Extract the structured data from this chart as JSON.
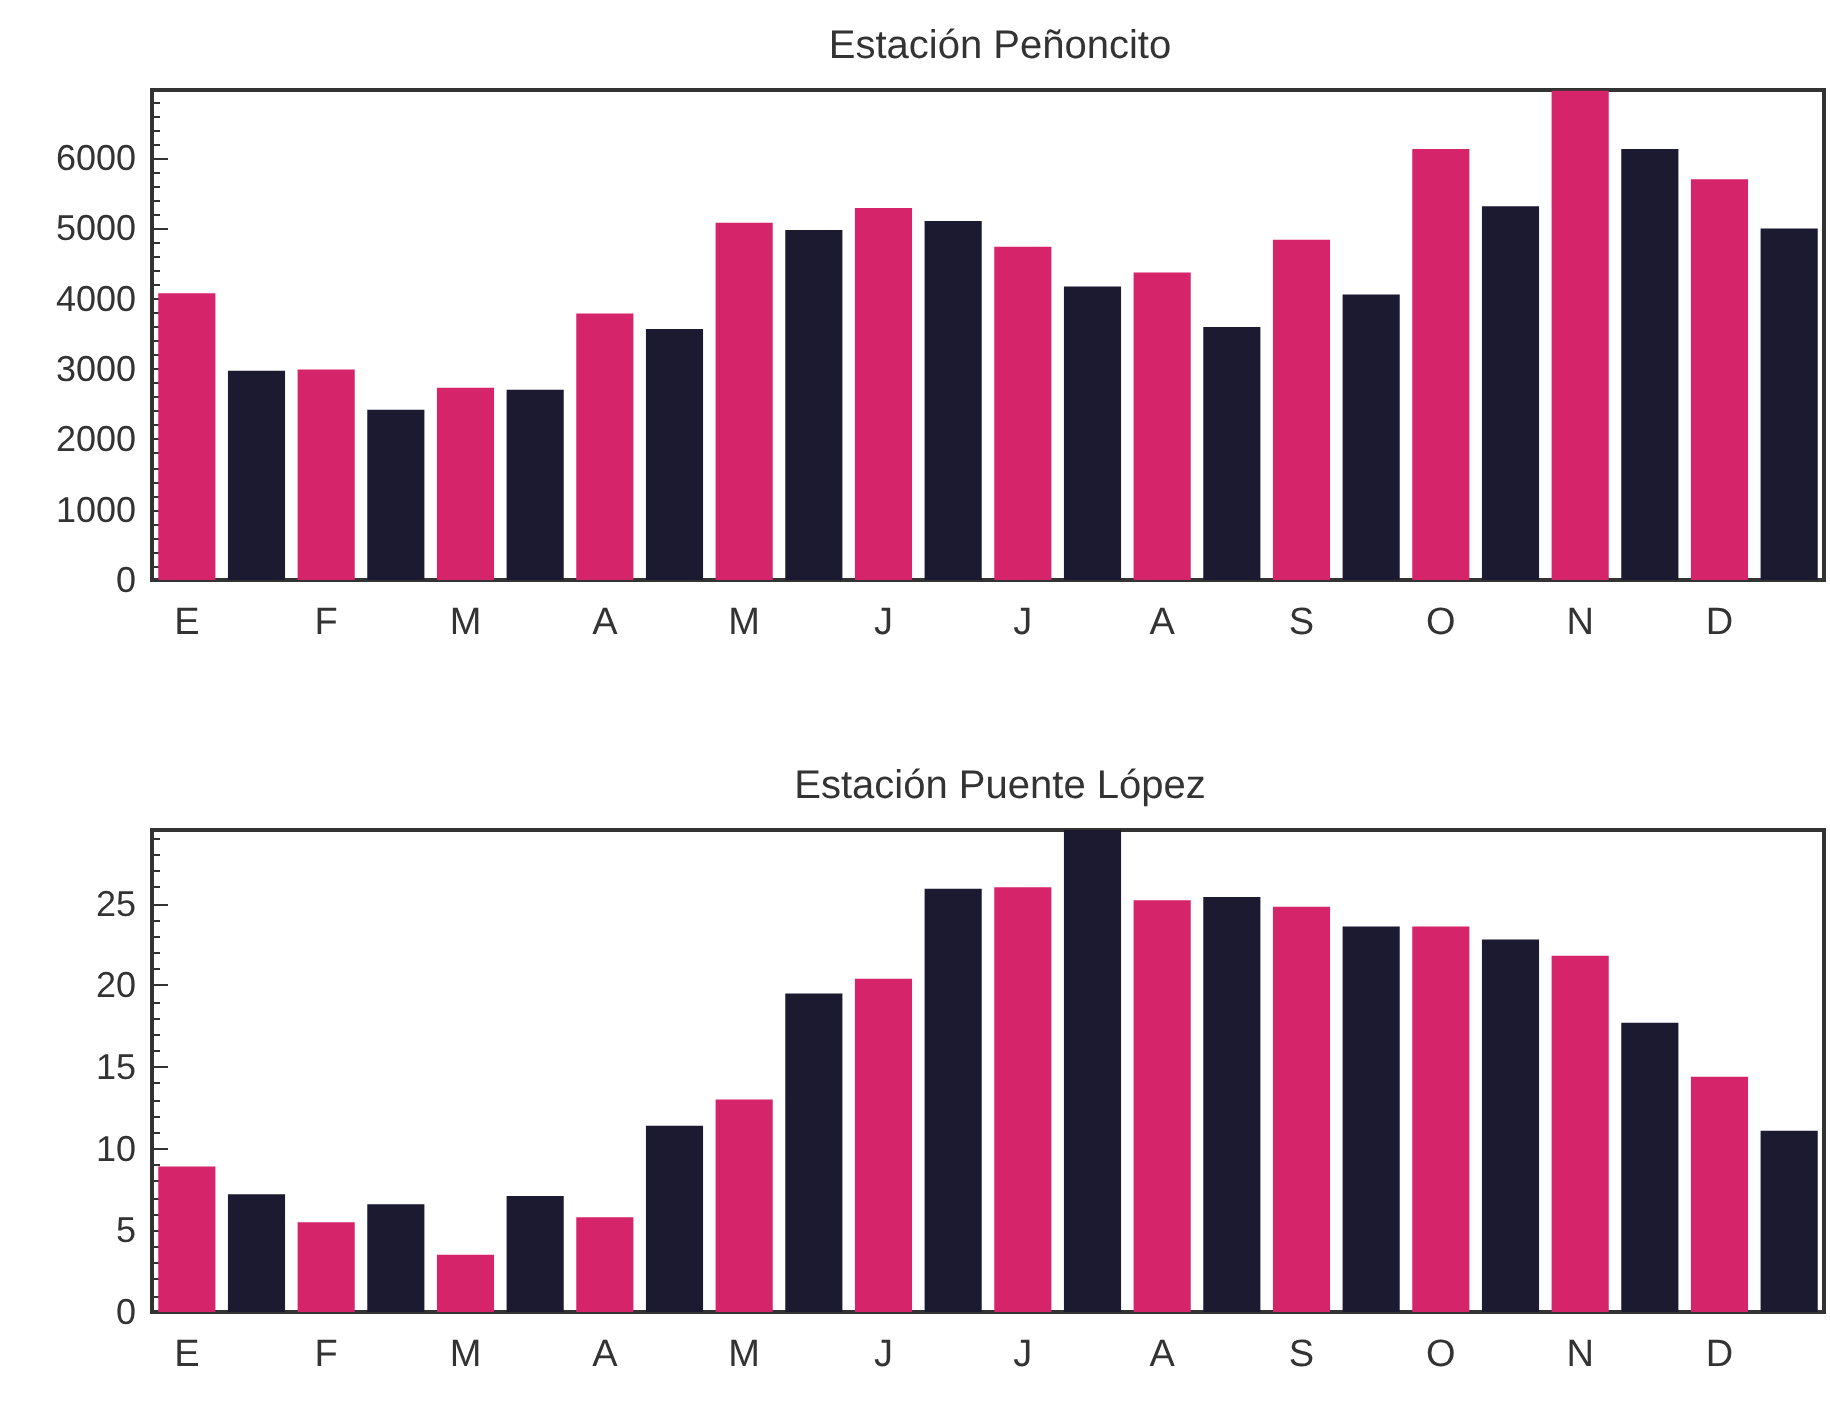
{
  "chart_data": [
    {
      "type": "bar",
      "title": "Estación Peñoncito",
      "categories": [
        "E",
        null,
        "F",
        null,
        "M",
        null,
        "A",
        null,
        "M",
        null,
        "J",
        null,
        "J",
        null,
        "A",
        null,
        "S",
        null,
        "O",
        null,
        "N",
        null,
        "D",
        null
      ],
      "values": [
        4080,
        2975,
        2995,
        2420,
        2735,
        2705,
        3790,
        3570,
        5080,
        4980,
        5290,
        5105,
        4740,
        4175,
        4375,
        3600,
        4840,
        4060,
        6130,
        5315,
        6960,
        6130,
        5700,
        5000
      ],
      "colors": [
        "#d6246a",
        "#1c1a30",
        "#d6246a",
        "#1c1a30",
        "#d6246a",
        "#1c1a30",
        "#d6246a",
        "#1c1a30",
        "#d6246a",
        "#1c1a30",
        "#d6246a",
        "#1c1a30",
        "#d6246a",
        "#1c1a30",
        "#d6246a",
        "#1c1a30",
        "#d6246a",
        "#1c1a30",
        "#d6246a",
        "#1c1a30",
        "#d6246a",
        "#1c1a30",
        "#d6246a",
        "#1c1a30"
      ],
      "ylim": [
        0,
        6970
      ],
      "yticks": [
        0,
        1000,
        2000,
        3000,
        4000,
        5000,
        6000
      ]
    },
    {
      "type": "bar",
      "title": "Estación Puente López",
      "categories": [
        "E",
        null,
        "F",
        null,
        "M",
        null,
        "A",
        null,
        "M",
        null,
        "J",
        null,
        "J",
        null,
        "A",
        null,
        "S",
        null,
        "O",
        null,
        "N",
        null,
        "D",
        null
      ],
      "values": [
        8.9,
        7.2,
        5.5,
        6.6,
        3.5,
        7.1,
        5.8,
        11.4,
        13.0,
        19.5,
        20.4,
        25.9,
        26.0,
        29.5,
        25.2,
        25.4,
        24.8,
        23.6,
        23.6,
        22.8,
        21.8,
        17.7,
        14.4,
        11.1
      ],
      "colors": [
        "#d6246a",
        "#1c1a30",
        "#d6246a",
        "#1c1a30",
        "#d6246a",
        "#1c1a30",
        "#d6246a",
        "#1c1a30",
        "#d6246a",
        "#1c1a30",
        "#d6246a",
        "#1c1a30",
        "#d6246a",
        "#1c1a30",
        "#d6246a",
        "#1c1a30",
        "#d6246a",
        "#1c1a30",
        "#d6246a",
        "#1c1a30",
        "#d6246a",
        "#1c1a30",
        "#d6246a",
        "#1c1a30"
      ],
      "ylim": [
        0,
        29.5
      ],
      "yticks": [
        0,
        5,
        10,
        15,
        20,
        25
      ]
    }
  ]
}
